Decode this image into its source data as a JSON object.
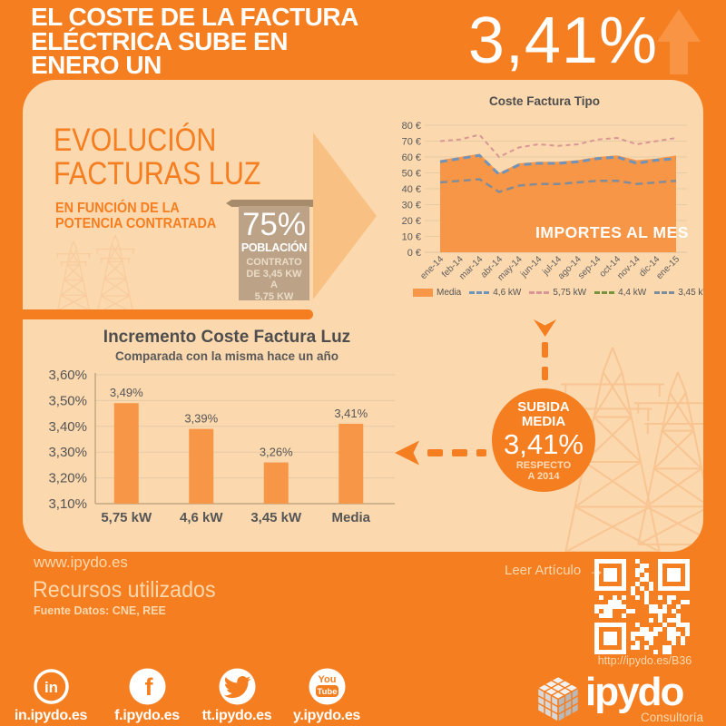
{
  "colors": {
    "orange": "#F57E20",
    "orange_light": "#F89443",
    "panel": "#FBD8AE",
    "arrow_light": "#F9C083",
    "tan": "#BCA287",
    "tan_dark": "#A68C6B",
    "tan_text": "#EADCC6",
    "text_dark": "#575757",
    "grid": "#E6CBA5",
    "axis": "#C2A784",
    "footer_text": "#FBD8AE",
    "white": "#FFFFFF"
  },
  "header": {
    "title_line1": "EL COSTE DE LA FACTURA",
    "title_line2": "ELÉCTRICA SUBE EN",
    "title_line3": "ENERO UN",
    "big_value": "3,41%"
  },
  "evolution": {
    "title_line1": "EVOLUCIÓN",
    "title_line2": "FACTURAS LUZ",
    "subtitle_line1": "EN FUNCIÓN DE LA",
    "subtitle_line2": "POTENCIA CONTRATADA"
  },
  "population_banner": {
    "percent": "75%",
    "label": "POBLACIÓN",
    "detail_lines": [
      "CONTRATO",
      "DE 3,45 KW",
      "A",
      "5,75 KW"
    ]
  },
  "bubble": {
    "top1": "SUBIDA",
    "top2": "MEDIA",
    "value": "3,41%",
    "bottom1": "RESPECTO",
    "bottom2": "A 2014"
  },
  "footer": {
    "site": "www.ipydo.es",
    "resources_title": "Recursos utilizados",
    "source": "Fuente Datos: CNE, REE",
    "read_article": "Leer Artículo",
    "read_article_arrow": "→",
    "qr_url": "http://ipydo.es/B36"
  },
  "social": [
    {
      "icon": "linkedin-icon",
      "label": "in.ipydo.es"
    },
    {
      "icon": "facebook-icon",
      "label": "f.ipydo.es"
    },
    {
      "icon": "twitter-icon",
      "label": "tt.ipydo.es"
    },
    {
      "icon": "youtube-icon",
      "label": "y.ipydo.es"
    }
  ],
  "brand": {
    "name": "ipydo",
    "tagline": "Consultoría"
  },
  "chart_data": [
    {
      "type": "area",
      "title": "Coste Factura Tipo",
      "annotation": "IMPORTES AL MES",
      "x": [
        "ene-14",
        "feb-14",
        "mar-14",
        "abr-14",
        "may-14",
        "jun-14",
        "jul-14",
        "ago-14",
        "sep-14",
        "oct-14",
        "nov-14",
        "dic-14",
        "ene-15"
      ],
      "ylim": [
        0,
        80
      ],
      "ytick_step": 10,
      "ytick_suffix": " €",
      "grid": true,
      "legend_position": "bottom",
      "series": [
        {
          "name": "Media",
          "style": "area",
          "color": "#F79646",
          "values": [
            58,
            60,
            62,
            50,
            56,
            57,
            57,
            58,
            60,
            61,
            58,
            59,
            61
          ]
        },
        {
          "name": "4,6 kW",
          "style": "dashed",
          "color": "#6F94BC",
          "values": [
            57,
            59,
            61,
            49,
            55,
            56,
            56,
            57,
            59,
            60,
            56,
            58,
            59
          ]
        },
        {
          "name": "5,75 kW",
          "style": "dashed",
          "color": "#D99694",
          "values": [
            70,
            71,
            74,
            60,
            66,
            68,
            67,
            68,
            71,
            72,
            68,
            70,
            72
          ]
        },
        {
          "name": "4,4 kW",
          "style": "dashed",
          "color": "#77933C",
          "values": null,
          "note": "legend entry only; line hidden behind Media area"
        },
        {
          "name": "3,45 kW",
          "style": "dashed",
          "color": "#7F8C9B",
          "values": [
            44,
            45,
            46,
            38,
            42,
            43,
            43,
            44,
            45,
            45,
            43,
            44,
            45
          ]
        }
      ]
    },
    {
      "type": "bar",
      "title": "Incremento Coste Factura Luz",
      "subtitle": "Comparada con la misma hace un año",
      "categories": [
        "5,75 kW",
        "4,6 kW",
        "3,45 kW",
        "Media"
      ],
      "values": [
        3.49,
        3.39,
        3.26,
        3.41
      ],
      "value_labels": [
        "3,49%",
        "3,39%",
        "3,26%",
        "3,41%"
      ],
      "ylim": [
        3.1,
        3.6
      ],
      "ytick_labels": [
        "3,10%",
        "3,20%",
        "3,30%",
        "3,40%",
        "3,50%",
        "3,60%"
      ],
      "bar_color": "#F79646",
      "grid": true
    }
  ]
}
